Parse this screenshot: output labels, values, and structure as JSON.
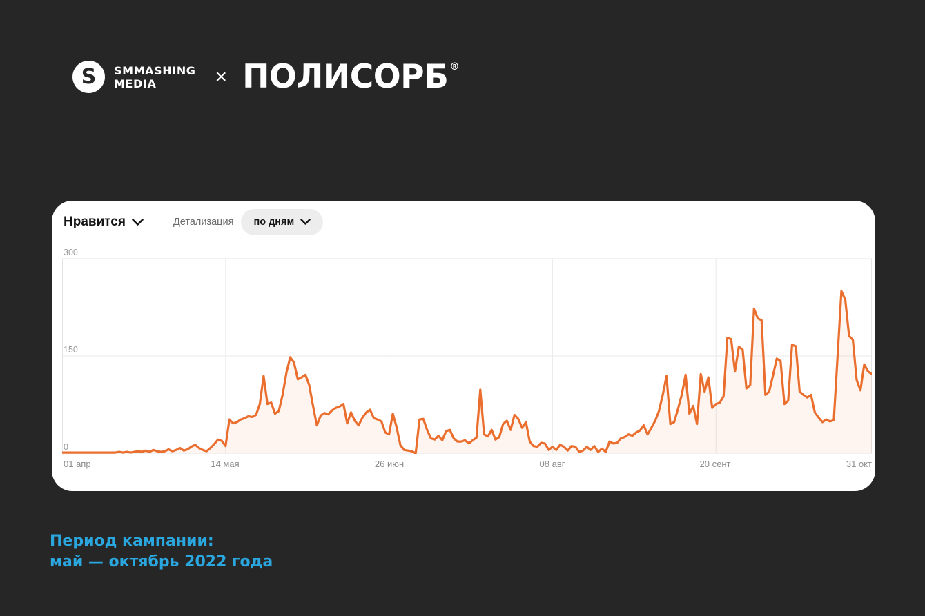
{
  "header": {
    "logo": {
      "monogram": "S",
      "brand_line1": "SMMASHING",
      "brand_line2": "MEDIA",
      "separator": "×",
      "partner_wordmark": "ПОЛИСОРБ",
      "registered_mark": "®"
    }
  },
  "chart_card": {
    "metric_selector": {
      "label": "Нравится",
      "icon": "chevron-down"
    },
    "detail_label": "Детализация",
    "granularity_selector": {
      "label": "по дням",
      "icon": "chevron-down"
    }
  },
  "chart_data": {
    "type": "area",
    "title": "Нравится — по дням",
    "ylabel": "",
    "xlabel": "",
    "ylim": [
      0,
      300
    ],
    "y_tick_labels": [
      "300",
      "150",
      "0"
    ],
    "x_tick_labels": [
      "01 апр",
      "14 мая",
      "26 июн",
      "08 авг",
      "20 сент",
      "31 окт"
    ],
    "grid": true,
    "legend": false,
    "line_color": "#ea6f2f",
    "fill_color": "rgba(234,111,47,0.07)",
    "values_by_day": [
      1,
      1,
      1,
      1,
      1,
      1,
      1,
      1,
      1,
      1,
      1,
      1,
      1,
      1,
      1,
      2,
      1,
      2,
      1,
      2,
      3,
      2,
      4,
      2,
      5,
      3,
      2,
      3,
      6,
      3,
      5,
      8,
      4,
      6,
      10,
      13,
      8,
      5,
      3,
      8,
      14,
      21,
      19,
      11,
      52,
      46,
      48,
      52,
      54,
      57,
      56,
      59,
      76,
      119,
      76,
      78,
      61,
      65,
      90,
      124,
      148,
      140,
      114,
      117,
      121,
      105,
      73,
      43,
      58,
      62,
      60,
      66,
      70,
      72,
      76,
      46,
      63,
      50,
      43,
      55,
      63,
      67,
      54,
      52,
      49,
      32,
      29,
      61,
      40,
      12,
      5,
      4,
      3,
      0,
      52,
      53,
      36,
      23,
      21,
      27,
      20,
      34,
      36,
      23,
      18,
      18,
      20,
      15,
      20,
      24,
      98,
      29,
      26,
      36,
      21,
      25,
      45,
      50,
      36,
      59,
      53,
      39,
      48,
      18,
      11,
      10,
      16,
      15,
      5,
      10,
      5,
      13,
      10,
      4,
      11,
      10,
      2,
      4,
      10,
      5,
      11,
      2,
      7,
      2,
      18,
      15,
      16,
      23,
      25,
      29,
      27,
      32,
      35,
      43,
      29,
      39,
      50,
      65,
      90,
      119,
      45,
      48,
      68,
      90,
      121,
      61,
      73,
      45,
      122,
      95,
      117,
      70,
      76,
      78,
      88,
      178,
      176,
      126,
      164,
      160,
      100,
      105,
      223,
      208,
      205,
      90,
      95,
      120,
      146,
      142,
      76,
      81,
      167,
      165,
      95,
      90,
      86,
      90,
      63,
      55,
      48,
      52,
      49,
      51,
      150,
      250,
      237,
      181,
      175,
      113,
      97,
      137,
      126,
      122
    ]
  },
  "footer": {
    "line1": "Период кампании:",
    "line2": "май — октябрь 2022 года",
    "accent_color": "#2ba7e0"
  }
}
